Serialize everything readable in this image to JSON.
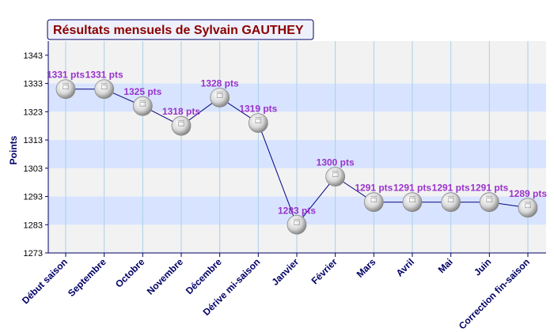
{
  "chart_data": {
    "type": "line",
    "title": "Résultats mensuels de Sylvain GAUTHEY",
    "ylabel": "Points",
    "xlabel": "",
    "ylim": [
      1273,
      1348
    ],
    "yticks": [
      1273,
      1283,
      1293,
      1303,
      1313,
      1323,
      1333,
      1343
    ],
    "categories": [
      "Début saison",
      "Septembre",
      "Octobre",
      "Novembre",
      "Décembre",
      "Dérive mi-saison",
      "Janvier",
      "Février",
      "Mars",
      "Avril",
      "Mai",
      "Juin",
      "Correction fin-saison"
    ],
    "series": [
      {
        "values": [
          1331,
          1331,
          1325,
          1318,
          1328,
          1319,
          1283,
          1300,
          1291,
          1291,
          1291,
          1291,
          1289
        ],
        "labels": [
          "1331 pts",
          "1331 pts",
          "1325 pts",
          "1318 pts",
          "1328 pts",
          "1319 pts",
          "1283 pts",
          "1300 pts",
          "1291 pts",
          "1291 pts",
          "1291 pts",
          "1291 pts",
          "1289 pts"
        ]
      }
    ],
    "grid": true,
    "legend": "none",
    "colors": {
      "title": "#8b0000",
      "axis": "#000066",
      "line": "#000080",
      "data_label": "#9933cc",
      "band_light": "#f2f2f2",
      "band_blue": "#d8e4ff",
      "vertical_grid": "#a8d0e8"
    },
    "marker_icon": "ping-pong-ball-icon"
  }
}
